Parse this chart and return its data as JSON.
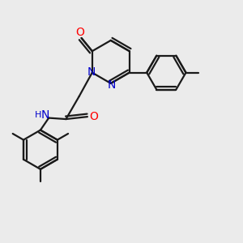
{
  "bg_color": "#ebebeb",
  "bond_color": "#1a1a1a",
  "nitrogen_color": "#0000cc",
  "oxygen_color": "#ff0000",
  "lw": 1.6,
  "dbo": 0.12,
  "xlim": [
    0,
    10
  ],
  "ylim": [
    0,
    10
  ]
}
